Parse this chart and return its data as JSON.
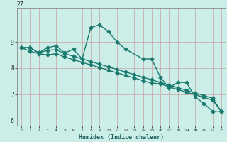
{
  "xlabel": "Humidex (Indice chaleur)",
  "background_color": "#cceee8",
  "grid_color": "#c8a0a0",
  "line_color": "#1a7a6e",
  "markersize": 2.5,
  "linewidth": 1.0,
  "xlim": [
    -0.5,
    23.5
  ],
  "ylim": [
    5.8,
    10.3
  ],
  "yticks": [
    6,
    7,
    8,
    9
  ],
  "ytick_extra": 27,
  "xticks": [
    0,
    1,
    2,
    3,
    4,
    5,
    6,
    7,
    8,
    9,
    10,
    11,
    12,
    13,
    14,
    15,
    16,
    17,
    18,
    19,
    20,
    21,
    22,
    23
  ],
  "line1_x": [
    0,
    1,
    2,
    3,
    4,
    5,
    6,
    7,
    8,
    9,
    10,
    11,
    12,
    14,
    15,
    16,
    17,
    18,
    19,
    20,
    21,
    22,
    23
  ],
  "line1_y": [
    8.78,
    8.78,
    8.58,
    8.78,
    8.85,
    8.58,
    8.72,
    8.35,
    9.55,
    9.65,
    9.4,
    9.0,
    8.72,
    8.35,
    8.35,
    7.65,
    7.25,
    7.45,
    7.45,
    6.9,
    6.65,
    6.35,
    6.35
  ],
  "line2_x": [
    0,
    1,
    2,
    3,
    4,
    5,
    6,
    7,
    8,
    9,
    10,
    11,
    12,
    13,
    14,
    15,
    16,
    17,
    18,
    19,
    20,
    21,
    22,
    23
  ],
  "line2_y": [
    8.78,
    8.78,
    8.58,
    8.68,
    8.7,
    8.55,
    8.45,
    8.35,
    8.25,
    8.15,
    8.05,
    7.95,
    7.85,
    7.75,
    7.65,
    7.55,
    7.45,
    7.35,
    7.25,
    7.15,
    7.05,
    6.95,
    6.85,
    6.35
  ],
  "line3_x": [
    0,
    1,
    2,
    3,
    4,
    5,
    6,
    7,
    8,
    9,
    10,
    11,
    12,
    13,
    14,
    15,
    16,
    17,
    18,
    19,
    20,
    21,
    22,
    23
  ],
  "line3_y": [
    8.78,
    8.65,
    8.55,
    8.5,
    8.55,
    8.42,
    8.32,
    8.22,
    8.12,
    8.02,
    7.92,
    7.82,
    7.72,
    7.62,
    7.52,
    7.42,
    7.4,
    7.28,
    7.18,
    7.08,
    6.98,
    6.88,
    6.78,
    6.35
  ]
}
